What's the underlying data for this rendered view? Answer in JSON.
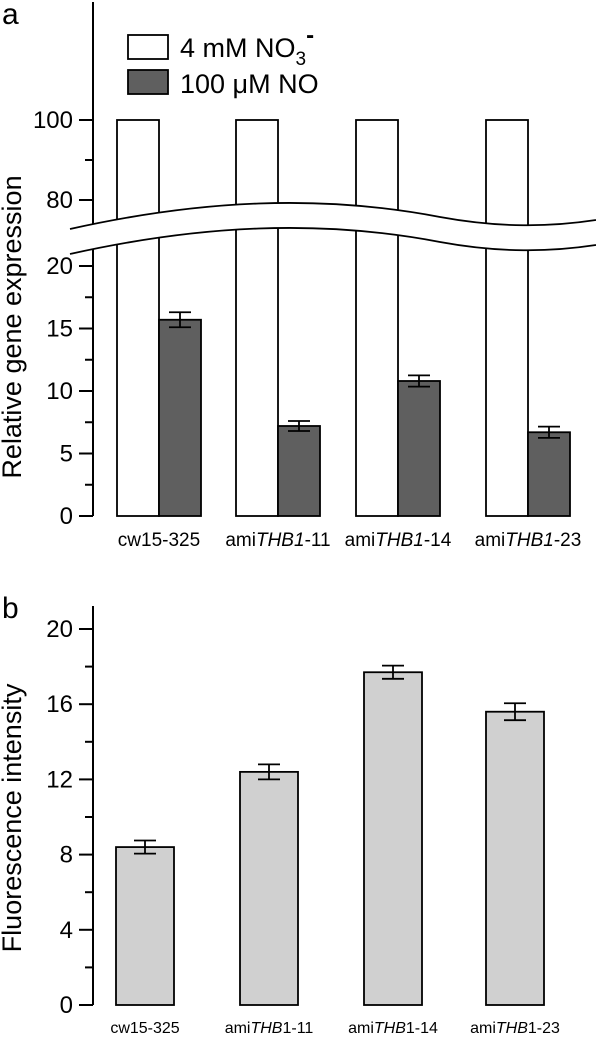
{
  "chart_data": [
    {
      "panel": "a",
      "type": "bar",
      "xlabel": "",
      "ylabel": "Relative gene expression",
      "categories": [
        {
          "prefix": "cw15-325",
          "italic": "",
          "suffix": ""
        },
        {
          "prefix": "ami",
          "italic": "THB1",
          "suffix": "-11"
        },
        {
          "prefix": "ami",
          "italic": "THB1",
          "suffix": "-14"
        },
        {
          "prefix": "ami",
          "italic": "THB1",
          "suffix": "-23"
        }
      ],
      "series": [
        {
          "name": {
            "base": "4 mM NO",
            "sub": "3",
            "sup": "-"
          },
          "color": "#ffffff",
          "values": [
            100,
            100,
            100,
            100
          ],
          "errors": null
        },
        {
          "name": {
            "base": "100 μM NO",
            "sub": "",
            "sup": ""
          },
          "color": "#5f5f5f",
          "values": [
            15.7,
            7.2,
            10.8,
            6.7
          ],
          "errors": [
            0.6,
            0.4,
            0.45,
            0.45
          ]
        }
      ],
      "axis_break": [
        20,
        80
      ],
      "lower_ticks": [
        "0",
        "5",
        "10",
        "15",
        "20"
      ],
      "upper_ticks": [
        "80",
        "100"
      ],
      "legend_position": "top-left"
    },
    {
      "panel": "b",
      "type": "bar",
      "xlabel": "",
      "ylabel": "Fluorescence intensity",
      "categories": [
        {
          "prefix": "cw15-325",
          "italic": "",
          "suffix": ""
        },
        {
          "prefix": "ami",
          "italic": "THB",
          "suffix": "1-11"
        },
        {
          "prefix": "ami",
          "italic": "THB",
          "suffix": "1-14"
        },
        {
          "prefix": "ami",
          "italic": "THB",
          "suffix": "1-23"
        }
      ],
      "series": [
        {
          "name": "",
          "color": "#d0d0d0",
          "values": [
            8.4,
            12.4,
            17.7,
            15.6
          ],
          "errors": [
            0.35,
            0.4,
            0.35,
            0.45
          ]
        }
      ],
      "ylim": [
        0,
        21
      ],
      "ticks": [
        "0",
        "4",
        "8",
        "12",
        "16",
        "20"
      ]
    }
  ]
}
